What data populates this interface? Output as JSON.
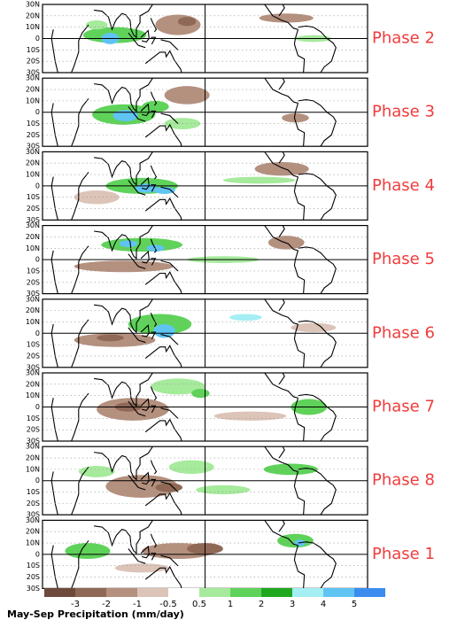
{
  "panels": [
    {
      "phase": "Phase 2"
    },
    {
      "phase": "Phase 3"
    },
    {
      "phase": "Phase 4"
    },
    {
      "phase": "Phase 5"
    },
    {
      "phase": "Phase 6"
    },
    {
      "phase": "Phase 7"
    },
    {
      "phase": "Phase 8"
    },
    {
      "phase": "Phase 1"
    }
  ],
  "lat_labels": [
    "30N",
    "20N",
    "10N",
    "0",
    "10S",
    "20S",
    "30S"
  ],
  "colorbar": {
    "title": "May-Sep Precipitation (mm/day)",
    "ticks": [
      -3,
      -2,
      -1,
      -0.5,
      0.5,
      1,
      2,
      3,
      4,
      5
    ],
    "colors": [
      "#6e4a3c",
      "#8f6856",
      "#b4907f",
      "#dcc4b8",
      "#ffffff",
      "#a6ea9c",
      "#5fd25a",
      "#1fa81f",
      "#a4eef4",
      "#5fc4f4",
      "#3c8cf0"
    ]
  }
}
